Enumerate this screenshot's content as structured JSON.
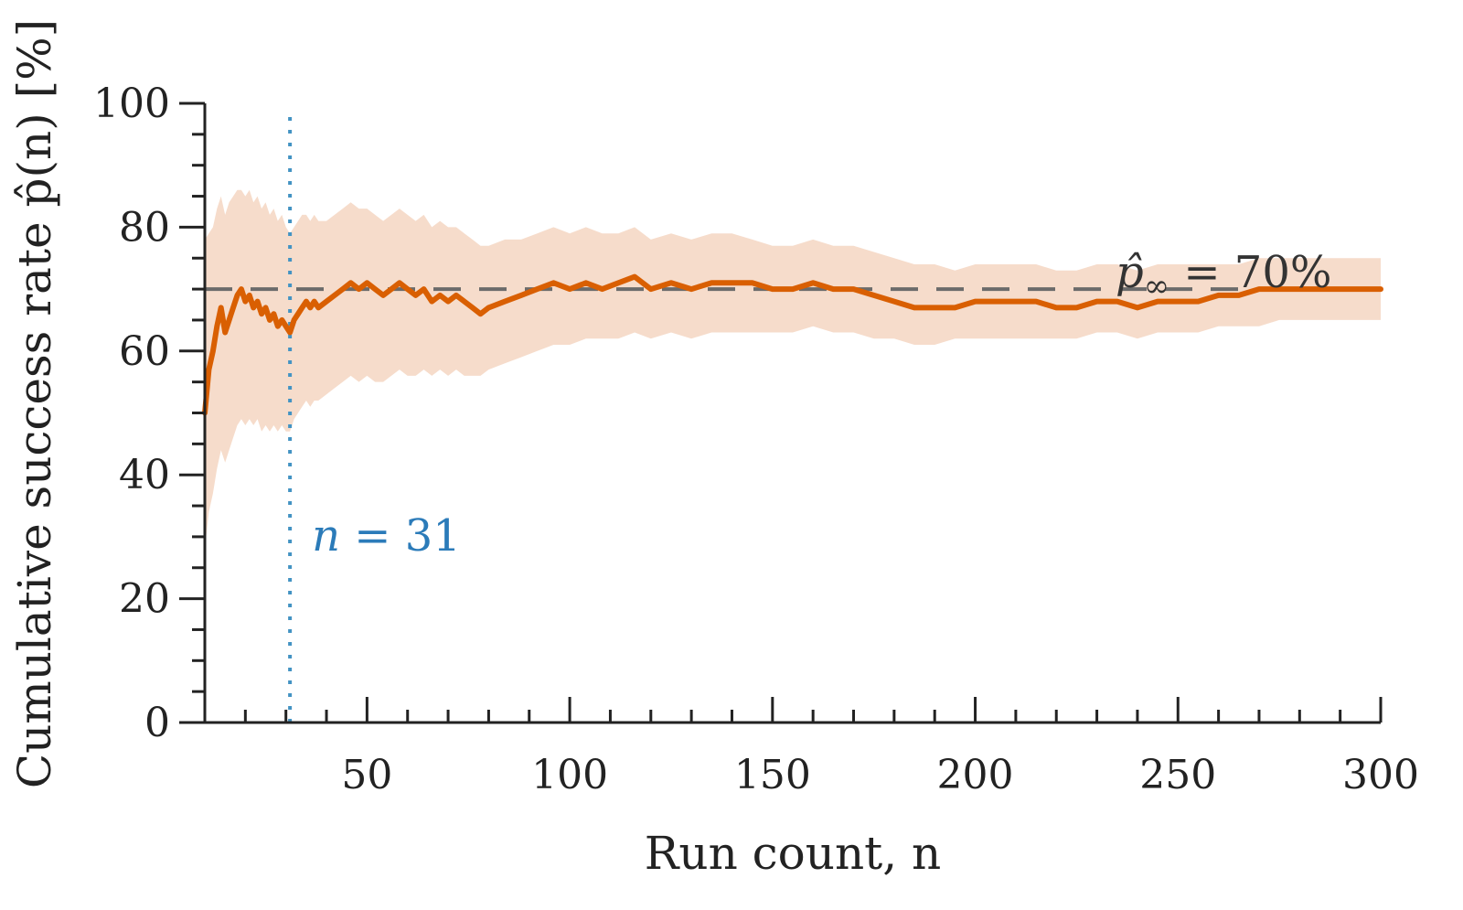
{
  "chart_data": {
    "type": "line",
    "title": "",
    "xlabel": "Run count, n",
    "ylabel": "Cumulative success rate p̂(n) [%]",
    "xlim": [
      10,
      300
    ],
    "ylim": [
      0,
      100
    ],
    "x_ticks": [
      50,
      100,
      150,
      200,
      250,
      300
    ],
    "y_ticks": [
      0,
      20,
      40,
      60,
      80,
      100
    ],
    "x_minor_step": 10,
    "y_minor_step": 5,
    "grid": false,
    "colors": {
      "line": "#d95f02",
      "band": "#f6dccb",
      "reference": "#6b6b6b",
      "marker_line": "#4393c3",
      "marker_text": "#2b7bb9",
      "axis": "#222222"
    },
    "series": [
      {
        "values_x": [
          10,
          11,
          12,
          13,
          14,
          15,
          16,
          17,
          18,
          19,
          20,
          21,
          22,
          23,
          24,
          25,
          26,
          27,
          28,
          29,
          30,
          31,
          32,
          33,
          34,
          35,
          36,
          37,
          38,
          40,
          42,
          44,
          46,
          48,
          50,
          52,
          54,
          56,
          58,
          60,
          62,
          64,
          66,
          68,
          70,
          72,
          74,
          76,
          78,
          80,
          84,
          88,
          92,
          96,
          100,
          104,
          108,
          112,
          116,
          120,
          125,
          130,
          135,
          140,
          145,
          150,
          155,
          160,
          165,
          170,
          175,
          180,
          185,
          190,
          195,
          200,
          205,
          210,
          215,
          220,
          225,
          230,
          235,
          240,
          245,
          250,
          255,
          260,
          265,
          270,
          275,
          280,
          285,
          290,
          295,
          300
        ],
        "values_y": [
          50,
          57,
          60,
          64,
          67,
          63,
          65,
          67,
          69,
          70,
          68,
          69,
          67,
          68,
          66,
          67,
          65,
          66,
          64,
          65,
          64,
          63,
          65,
          66,
          67,
          68,
          67,
          68,
          67,
          68,
          69,
          70,
          71,
          70,
          71,
          70,
          69,
          70,
          71,
          70,
          69,
          70,
          68,
          69,
          68,
          69,
          68,
          67,
          66,
          67,
          68,
          69,
          70,
          71,
          70,
          71,
          70,
          71,
          72,
          70,
          71,
          70,
          71,
          71,
          71,
          70,
          70,
          71,
          70,
          70,
          69,
          68,
          67,
          67,
          67,
          68,
          68,
          68,
          68,
          67,
          67,
          68,
          68,
          67,
          68,
          68,
          68,
          69,
          69,
          70,
          70,
          70,
          70,
          70,
          70,
          70
        ],
        "band_lower": [
          28,
          34,
          37,
          41,
          44,
          42,
          44,
          46,
          48,
          49,
          48,
          49,
          48,
          49,
          47,
          48,
          47,
          48,
          47,
          48,
          47,
          47,
          49,
          50,
          51,
          52,
          51,
          52,
          52,
          53,
          54,
          55,
          56,
          55,
          56,
          55,
          55,
          56,
          57,
          56,
          56,
          57,
          56,
          57,
          56,
          57,
          56,
          56,
          56,
          57,
          58,
          59,
          60,
          61,
          61,
          62,
          62,
          62,
          63,
          62,
          63,
          62,
          63,
          63,
          63,
          63,
          63,
          64,
          63,
          63,
          62,
          62,
          61,
          61,
          62,
          62,
          62,
          62,
          62,
          62,
          62,
          63,
          63,
          62,
          63,
          63,
          63,
          64,
          64,
          64,
          65,
          65,
          65,
          65,
          65,
          65
        ],
        "band_upper": [
          78,
          79,
          80,
          83,
          85,
          82,
          84,
          85,
          86,
          86,
          85,
          86,
          84,
          85,
          83,
          84,
          82,
          83,
          81,
          82,
          80,
          79,
          80,
          81,
          82,
          82,
          81,
          82,
          81,
          81,
          82,
          83,
          84,
          83,
          83,
          82,
          81,
          82,
          83,
          82,
          81,
          82,
          80,
          81,
          80,
          80,
          79,
          78,
          77,
          77,
          78,
          78,
          79,
          80,
          79,
          80,
          79,
          79,
          80,
          78,
          79,
          78,
          79,
          79,
          78,
          77,
          77,
          78,
          77,
          77,
          76,
          75,
          74,
          74,
          73,
          74,
          74,
          74,
          74,
          73,
          73,
          74,
          74,
          73,
          74,
          74,
          74,
          74,
          74,
          75,
          75,
          75,
          75,
          75,
          75,
          75
        ]
      }
    ],
    "reference_line": {
      "y": 70,
      "style": "dashed",
      "label_prefix": "p̂",
      "label_subscript": "∞",
      "label_value": " = 70%"
    },
    "marker_line": {
      "x": 31,
      "style": "dotted",
      "label_var": "n",
      "label_value": " = 31"
    }
  }
}
